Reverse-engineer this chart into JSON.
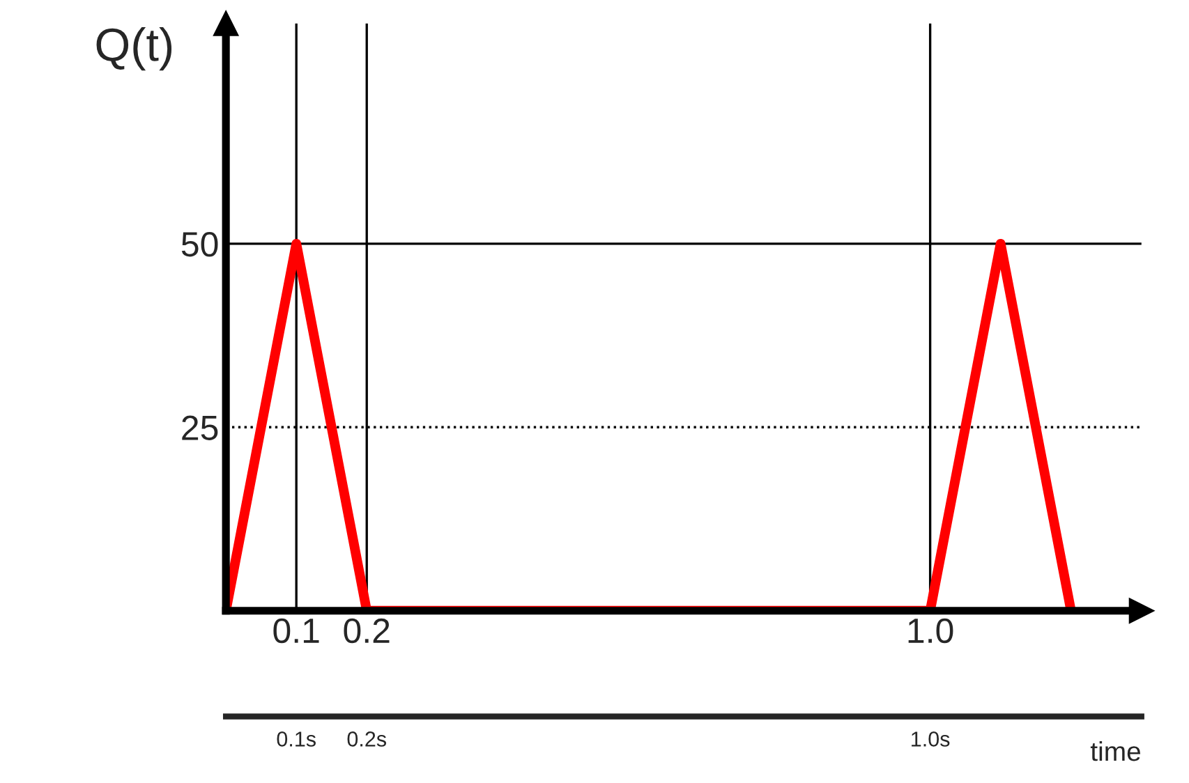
{
  "chart_data": {
    "type": "line",
    "ylabel": "Q(t)",
    "x": [
      0,
      0.1,
      0.2,
      1.0,
      1.1,
      1.2
    ],
    "series": [
      {
        "color": "#ff0000",
        "values": [
          0,
          50,
          0,
          0,
          50,
          0
        ]
      }
    ],
    "xlim": [
      0,
      1.3
    ],
    "xticks": [
      0.1,
      0.2,
      {
        "value": 1.0,
        "label": "1.0"
      }
    ],
    "ylim": [
      0,
      80
    ],
    "yticks": [
      25,
      50
    ],
    "x2lim": [
      0,
      1.3
    ],
    "x2ticks": [
      {
        "value": 0.1,
        "label": "0.1s"
      },
      {
        "value": 0.2,
        "label": "0.2s"
      },
      {
        "value": 1.0,
        "label": "1.0s"
      }
    ],
    "x2label": "time",
    "ref_lines": [
      {
        "axis": "y",
        "value": 50,
        "color": "#000000",
        "line_style": "solid"
      },
      {
        "axis": "y",
        "value": 25,
        "color": "#000000",
        "line_style": "dotted"
      },
      {
        "axis": "x",
        "value": 0.1,
        "color": "#000000",
        "line_style": "solid"
      },
      {
        "axis": "x",
        "value": 0.2,
        "color": "#000000",
        "line_style": "solid"
      },
      {
        "axis": "x",
        "value": 1.0,
        "color": "#000000",
        "line_style": "solid"
      }
    ],
    "grid": false,
    "marker": "none",
    "line_style": "solid"
  }
}
